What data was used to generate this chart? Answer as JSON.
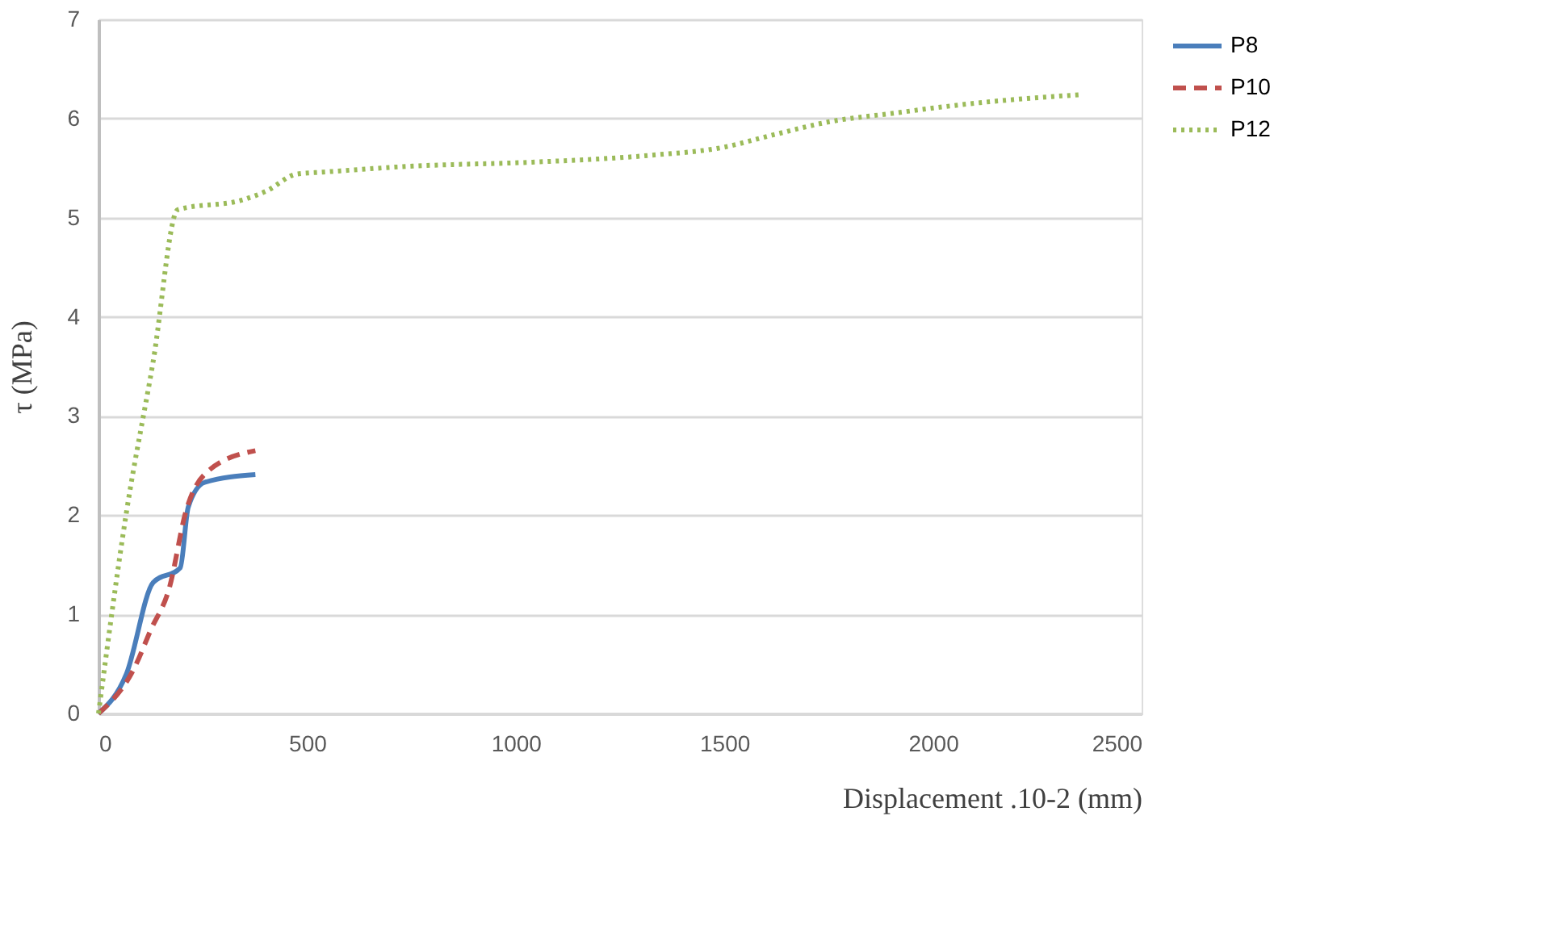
{
  "chart_data": {
    "type": "line",
    "xlabel": "Displacement .10-2 (mm)",
    "ylabel": "τ (MPa)",
    "xlim": [
      0,
      2500
    ],
    "xticks": [
      0,
      500,
      1000,
      1500,
      2000,
      2500
    ],
    "ylim": [
      0,
      7
    ],
    "yticks": [
      0,
      1,
      2,
      3,
      4,
      5,
      6,
      7
    ],
    "grid": "y",
    "legend": "right",
    "marker": "none",
    "series": [
      {
        "name": "P8",
        "color": "#4a7ebb",
        "line_style": "solid",
        "x": [
          0,
          67,
          131,
          196,
          215,
          254,
          376
        ],
        "values": [
          0,
          0.4,
          1.32,
          1.47,
          2.08,
          2.33,
          2.41
        ]
      },
      {
        "name": "P10",
        "color": "#c0504d",
        "line_style": "dashed",
        "x": [
          0,
          86,
          125,
          170,
          209,
          267,
          376
        ],
        "values": [
          0,
          0.46,
          0.84,
          1.27,
          2.03,
          2.46,
          2.65
        ]
      },
      {
        "name": "P12",
        "color": "#9bbb59",
        "line_style": "dotted",
        "x": [
          0,
          67,
          131,
          190,
          346,
          403,
          475,
          539,
          753,
          1040,
          1325,
          1498,
          1612,
          1755,
          1898,
          2113,
          2350
        ],
        "values": [
          0,
          2.03,
          3.55,
          5.08,
          5.18,
          5.27,
          5.44,
          5.46,
          5.52,
          5.56,
          5.63,
          5.71,
          5.83,
          5.97,
          6.05,
          6.16,
          6.24
        ]
      }
    ]
  }
}
